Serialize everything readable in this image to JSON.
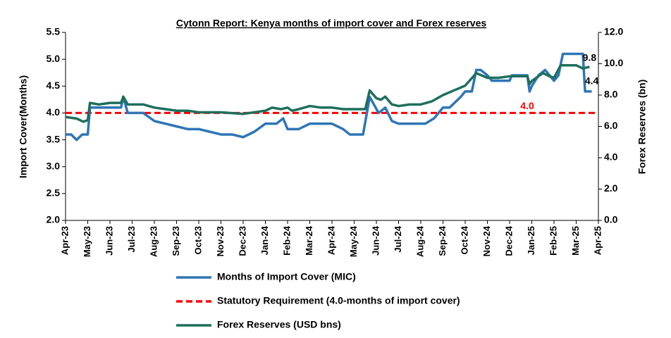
{
  "chart_data": {
    "type": "line",
    "title": "Cytonn Report: Kenya months of import cover and Forex reserves",
    "ylabel": "Import Cover(Months)",
    "y2label": "Forex Reserves (bn)",
    "xlim": [
      0,
      24
    ],
    "xticks": [
      {
        "value": 0,
        "label": "Apr-23"
      },
      {
        "value": 1,
        "label": "May-23"
      },
      {
        "value": 2,
        "label": "Jun-23"
      },
      {
        "value": 3,
        "label": "Jul-23"
      },
      {
        "value": 4,
        "label": "Aug-23"
      },
      {
        "value": 5,
        "label": "Sep-23"
      },
      {
        "value": 6,
        "label": "Oct-23"
      },
      {
        "value": 7,
        "label": "Nov-23"
      },
      {
        "value": 8,
        "label": "Dec-23"
      },
      {
        "value": 9,
        "label": "Jan-24"
      },
      {
        "value": 10,
        "label": "Feb-24"
      },
      {
        "value": 11,
        "label": "Mar-24"
      },
      {
        "value": 12,
        "label": "Apr-24"
      },
      {
        "value": 13,
        "label": "May-24"
      },
      {
        "value": 14,
        "label": "Jun-24"
      },
      {
        "value": 15,
        "label": "Jul-24"
      },
      {
        "value": 16,
        "label": "Aug-24"
      },
      {
        "value": 17,
        "label": "Sep-24"
      },
      {
        "value": 18,
        "label": "Oct-24"
      },
      {
        "value": 19,
        "label": "Nov-24"
      },
      {
        "value": 20,
        "label": "Dec-24"
      },
      {
        "value": 21,
        "label": "Jan-25"
      },
      {
        "value": 22,
        "label": "Feb-25"
      },
      {
        "value": 23,
        "label": "Mar-25"
      },
      {
        "value": 24,
        "label": "Apr-25"
      }
    ],
    "ylim": [
      2.0,
      5.5
    ],
    "yticks": [
      {
        "value": 2,
        "label": "2.0"
      },
      {
        "value": 2.5,
        "label": "2.5"
      },
      {
        "value": 3,
        "label": "3.0"
      },
      {
        "value": 3.5,
        "label": "3.5"
      },
      {
        "value": 4,
        "label": "4.0"
      },
      {
        "value": 4.5,
        "label": "4.5"
      },
      {
        "value": 5,
        "label": "5.0"
      },
      {
        "value": 5.5,
        "label": "5.5"
      }
    ],
    "y2lim": [
      0,
      12
    ],
    "y2ticks": [
      {
        "value": 0,
        "label": "0.0"
      },
      {
        "value": 2,
        "label": "2.0"
      },
      {
        "value": 4,
        "label": "4.0"
      },
      {
        "value": 6,
        "label": "6.0"
      },
      {
        "value": 8,
        "label": "8.0"
      },
      {
        "value": 10,
        "label": "10.0"
      },
      {
        "value": 12,
        "label": "12.0"
      }
    ],
    "series": [
      {
        "name": "Months of Import Cover (MIC)",
        "color": "#2e75b6",
        "axis": "y",
        "last_label": "4.4",
        "x": [
          0,
          0.25,
          0.5,
          0.75,
          1.0,
          1.1,
          1.5,
          2,
          2.5,
          2.6,
          2.8,
          3,
          3.5,
          4,
          4.5,
          5,
          5.5,
          6,
          6.5,
          7,
          7.5,
          8,
          8.5,
          9,
          9.5,
          9.8,
          10,
          10.5,
          11,
          11.5,
          12,
          12.5,
          12.8,
          13.0,
          13.4,
          13.7,
          14.1,
          14.4,
          14.7,
          15,
          16,
          16.2,
          16.6,
          17,
          17.3,
          17.8,
          18,
          18.3,
          18.5,
          18.7,
          19,
          19.2,
          20,
          20.1,
          20.8,
          20.9,
          21,
          21.3,
          21.6,
          21.8,
          22,
          22.2,
          22.4,
          23.3,
          23.4,
          23.7
        ],
        "values": [
          3.6,
          3.6,
          3.5,
          3.6,
          3.6,
          4.1,
          4.1,
          4.1,
          4.1,
          4.3,
          4.0,
          4.0,
          4.0,
          3.85,
          3.8,
          3.75,
          3.7,
          3.7,
          3.65,
          3.6,
          3.6,
          3.55,
          3.65,
          3.8,
          3.8,
          3.9,
          3.7,
          3.7,
          3.8,
          3.8,
          3.8,
          3.7,
          3.6,
          3.6,
          3.6,
          4.3,
          4.0,
          4.1,
          3.85,
          3.8,
          3.8,
          3.8,
          3.9,
          4.1,
          4.1,
          4.3,
          4.4,
          4.4,
          4.8,
          4.8,
          4.7,
          4.6,
          4.6,
          4.7,
          4.7,
          4.4,
          4.5,
          4.7,
          4.8,
          4.7,
          4.6,
          4.7,
          5.1,
          5.1,
          4.4,
          4.4
        ]
      },
      {
        "name": "Forex Reserves (USD bns)",
        "color": "#1e6f5c",
        "axis": "y2",
        "last_label": "9.8",
        "x": [
          0,
          0.5,
          0.8,
          1.0,
          1.1,
          1.5,
          2,
          2.5,
          2.6,
          2.8,
          3,
          3.5,
          4,
          4.5,
          5,
          5.5,
          6,
          7,
          8,
          8.5,
          9,
          9.3,
          9.7,
          10,
          10.2,
          10.5,
          11,
          11.5,
          12,
          12.5,
          13,
          13.5,
          13.7,
          14,
          14.2,
          14.4,
          14.7,
          15,
          15.5,
          16,
          16.5,
          17,
          17.5,
          18,
          18.5,
          19,
          19.5,
          20,
          20.8,
          20.9,
          21,
          21.5,
          21.8,
          22,
          22.3,
          22.7,
          23,
          23.3,
          23.6
        ],
        "values": [
          6.6,
          6.5,
          6.3,
          6.4,
          7.5,
          7.4,
          7.5,
          7.5,
          7.9,
          7.4,
          7.4,
          7.4,
          7.2,
          7.1,
          7.0,
          7.0,
          6.9,
          6.9,
          6.8,
          6.9,
          7.0,
          7.2,
          7.1,
          7.2,
          7.0,
          7.1,
          7.3,
          7.2,
          7.2,
          7.1,
          7.1,
          7.1,
          8.3,
          7.8,
          7.7,
          7.9,
          7.4,
          7.3,
          7.4,
          7.4,
          7.6,
          8.0,
          8.3,
          8.6,
          9.4,
          9.1,
          9.1,
          9.2,
          9.2,
          8.7,
          8.9,
          9.4,
          9.2,
          9.1,
          9.9,
          9.9,
          9.9,
          9.7,
          9.8
        ]
      }
    ],
    "reference": {
      "name": "Statutory Requirement (4.0-months of import cover)",
      "value": 4,
      "value_label": "4.0",
      "color": "#ff0000"
    }
  }
}
